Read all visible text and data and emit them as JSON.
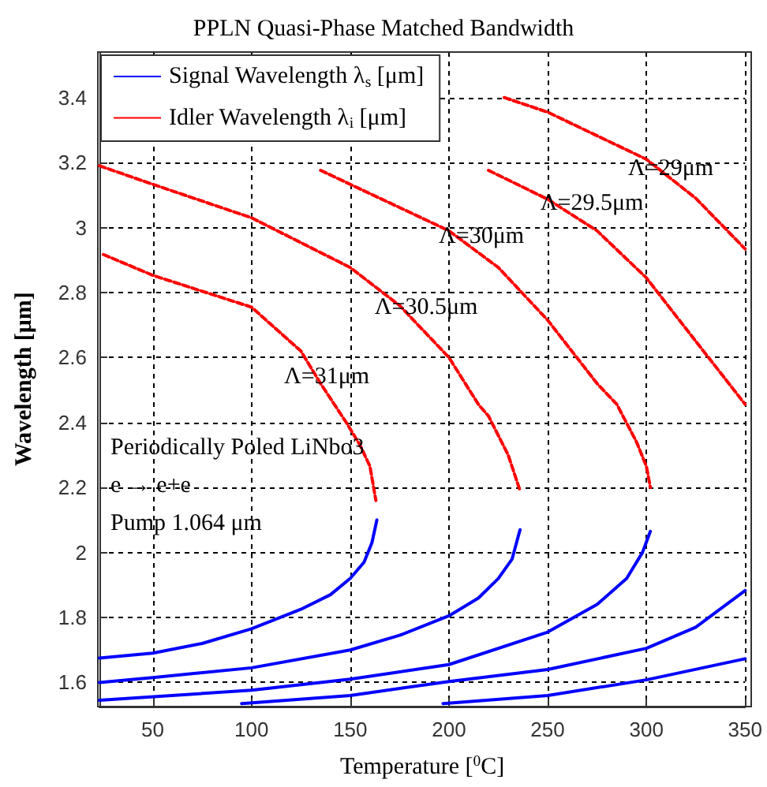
{
  "chart_data": {
    "type": "line",
    "title": "PPLN Quasi-Phase Matched Bandwidth",
    "xlabel": "Temperature [$^{0}$C]",
    "ylabel": "Wavelength [μm]",
    "xlim": [
      23,
      350
    ],
    "ylim": [
      1.527,
      3.54
    ],
    "xticks": [
      50,
      100,
      150,
      200,
      250,
      300,
      350
    ],
    "yticks": [
      1.6,
      1.8,
      2,
      2.2,
      2.4,
      2.6,
      2.8,
      3,
      3.2,
      3.4
    ],
    "grid": true,
    "legend": "top left",
    "marker": "none",
    "series": [
      {
        "name": "Signal Wavelength λ$_{s}$ [μm]",
        "color": "#0000ff",
        "line_style": "solid",
        "x": [
          23,
          50,
          75,
          100,
          125,
          140,
          150,
          157,
          161,
          163.5,
          null,
          23,
          50,
          100,
          150,
          175,
          200,
          215,
          225,
          232,
          236,
          null,
          23,
          100,
          150,
          200,
          250,
          275,
          290,
          298,
          302,
          null,
          95,
          150,
          200,
          250,
          300,
          325,
          350,
          null,
          197,
          250,
          300,
          350
        ],
        "values": [
          1.675,
          1.69,
          1.72,
          1.765,
          1.825,
          1.87,
          1.92,
          1.97,
          2.03,
          2.1,
          null,
          1.6,
          1.615,
          1.645,
          1.7,
          1.745,
          1.805,
          1.86,
          1.92,
          1.98,
          2.07,
          null,
          1.545,
          1.576,
          1.61,
          1.655,
          1.755,
          1.84,
          1.92,
          2,
          2.065,
          null,
          1.535,
          1.56,
          1.603,
          1.64,
          1.705,
          1.77,
          1.883,
          null,
          1.535,
          1.56,
          1.608,
          1.673
        ]
      },
      {
        "name": "Idler Wavelength λ$_{i}$ [μm]",
        "color": "#ff0000",
        "line_style": "dashed",
        "x": [
          25,
          50,
          100,
          125,
          135,
          148,
          155,
          160,
          163,
          null,
          23,
          50,
          100,
          150,
          175,
          200,
          215,
          220,
          230,
          236,
          null,
          135,
          150,
          200,
          225,
          250,
          275,
          285,
          295,
          300,
          302,
          null,
          220,
          250,
          275,
          300,
          325,
          350,
          null,
          228,
          250,
          300,
          325,
          350
        ],
        "values": [
          2.917,
          2.853,
          2.755,
          2.62,
          2.52,
          2.4,
          2.33,
          2.265,
          2.16,
          null,
          3.19,
          3.133,
          3.03,
          2.877,
          2.76,
          2.6,
          2.455,
          2.42,
          2.3,
          2.19,
          null,
          3.176,
          3.133,
          2.99,
          2.877,
          2.715,
          2.52,
          2.456,
          2.34,
          2.265,
          2.2,
          null,
          3.176,
          3.087,
          2.99,
          2.845,
          2.65,
          2.456,
          null,
          3.4,
          3.355,
          3.21,
          3.09,
          2.934
        ]
      }
    ],
    "annotations": [
      "Λ=29μm",
      "Λ=29.5μm",
      "Λ=30μm",
      "Λ=30.5μm",
      "Λ=31μm",
      "Periodically Poled LiNbo3",
      "e → e+e",
      "Pump 1.064 μm"
    ]
  }
}
